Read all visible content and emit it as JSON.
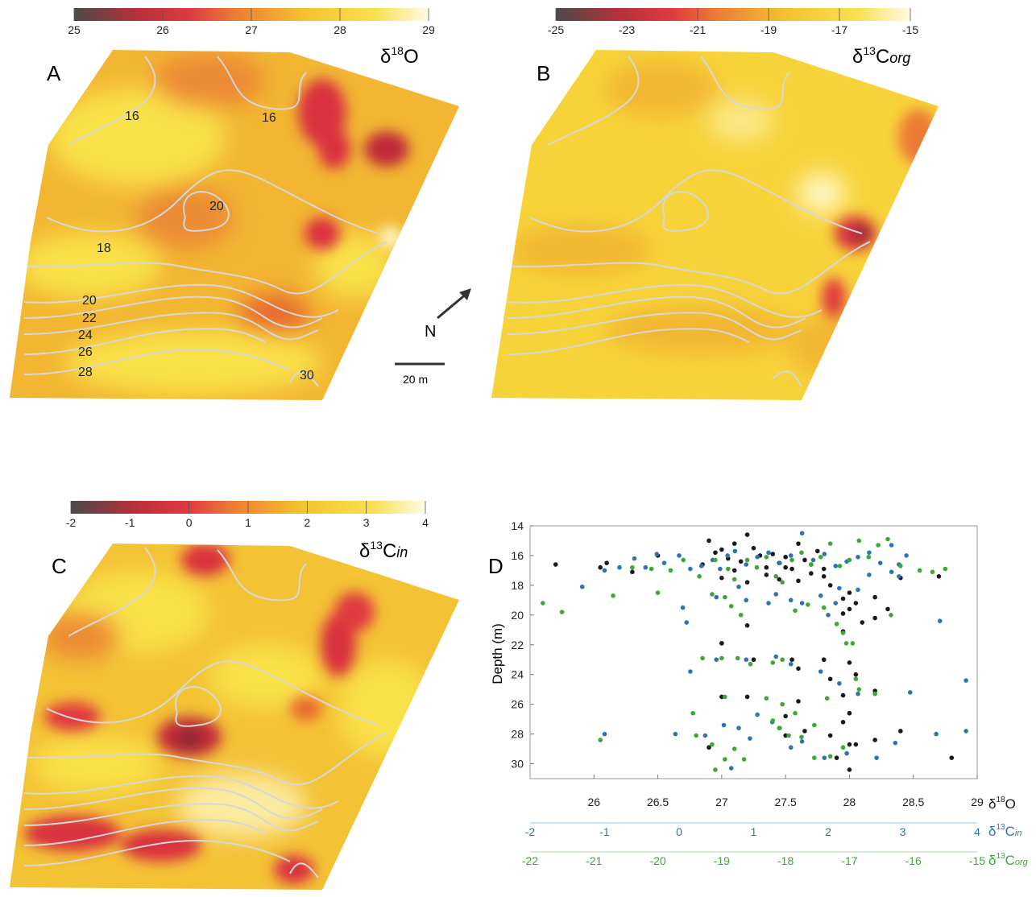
{
  "colors": {
    "ramp": [
      "#4a4a4a",
      "#d9303f",
      "#e35a3a",
      "#f0a030",
      "#f6d02c",
      "#fff3b0",
      "#ffffff"
    ],
    "contour": "#d7d7d7",
    "black_series": "#1a1a1a",
    "blue_series": "#2e74b5",
    "green_series": "#3aaa35"
  },
  "panels": {
    "A": {
      "letter": "A",
      "label_main": "δ",
      "label_sup": "18",
      "label_end": "O",
      "colorbar_ticks": [
        "25",
        "26",
        "27",
        "28",
        "29"
      ],
      "contour_labels": [
        "16",
        "16",
        "20",
        "18",
        "20",
        "22",
        "24",
        "26",
        "28",
        "30"
      ]
    },
    "B": {
      "letter": "B",
      "label_main": "δ",
      "label_sup": "13",
      "label_end": "C",
      "label_sub": "org",
      "colorbar_ticks": [
        "-25",
        "-23",
        "-21",
        "-19",
        "-17",
        "-15"
      ]
    },
    "C": {
      "letter": "C",
      "label_main": "δ",
      "label_sup": "13",
      "label_end": "C",
      "label_sub": "in",
      "colorbar_ticks": [
        "-2",
        "-1",
        "0",
        "1",
        "2",
        "3",
        "4"
      ]
    },
    "D": {
      "letter": "D"
    }
  },
  "compass": {
    "north_label": "N",
    "scale_label": "20 m"
  },
  "chart_data": {
    "type": "scatter",
    "ylabel": "Depth (m)",
    "ylim": [
      31,
      14
    ],
    "yticks": [
      14,
      16,
      18,
      20,
      22,
      24,
      26,
      28,
      30
    ],
    "axes": [
      {
        "label_main": "δ",
        "label_sup": "18",
        "label_end": "O",
        "label_sub": "",
        "range": [
          25.5,
          29
        ],
        "ticks": [
          "26",
          "26.5",
          "27",
          "27.5",
          "28",
          "28.5",
          "29"
        ],
        "color": "#1a1a1a"
      },
      {
        "label_main": "δ",
        "label_sup": "13",
        "label_end": "C",
        "label_sub": "in",
        "range": [
          -2,
          4
        ],
        "ticks": [
          "-2",
          "-1",
          "0",
          "1",
          "2",
          "3",
          "4"
        ],
        "color": "#2e74b5"
      },
      {
        "label_main": "δ",
        "label_sup": "13",
        "label_end": "C",
        "label_sub": "org",
        "range": [
          -22,
          -15
        ],
        "ticks": [
          "-22",
          "-21",
          "-20",
          "-19",
          "-18",
          "-17",
          "-16",
          "-15"
        ],
        "color": "#3aaa35"
      }
    ],
    "series": [
      {
        "axis": 0,
        "points": [
          [
            25.7,
            16.6
          ],
          [
            26.05,
            16.8
          ],
          [
            26.1,
            16.5
          ],
          [
            26.3,
            17.1
          ],
          [
            26.5,
            16.0
          ],
          [
            26.85,
            16.6
          ],
          [
            26.9,
            15.0
          ],
          [
            26.95,
            15.8
          ],
          [
            27.0,
            15.6
          ],
          [
            27.05,
            16.2
          ],
          [
            27.1,
            15.2
          ],
          [
            27.15,
            16.4
          ],
          [
            27.2,
            14.6
          ],
          [
            27.25,
            15.5
          ],
          [
            27.3,
            16.0
          ],
          [
            27.35,
            16.8
          ],
          [
            27.4,
            15.9
          ],
          [
            27.45,
            16.5
          ],
          [
            27.5,
            16.1
          ],
          [
            27.55,
            16.9
          ],
          [
            27.6,
            15.2
          ],
          [
            27.65,
            16.3
          ],
          [
            27.7,
            16.6
          ],
          [
            27.75,
            15.7
          ],
          [
            27.8,
            16.9
          ],
          [
            27.0,
            17.5
          ],
          [
            27.1,
            17.0
          ],
          [
            27.2,
            17.8
          ],
          [
            27.35,
            17.3
          ],
          [
            27.45,
            17.6
          ],
          [
            27.5,
            16.8
          ],
          [
            27.6,
            17.7
          ],
          [
            27.7,
            17.2
          ],
          [
            27.8,
            17.4
          ],
          [
            27.85,
            18.0
          ],
          [
            27.95,
            18.9
          ],
          [
            28.0,
            18.5
          ],
          [
            28.05,
            19.2
          ],
          [
            27.95,
            19.9
          ],
          [
            28.0,
            19.6
          ],
          [
            28.1,
            20.5
          ],
          [
            27.95,
            21.1
          ],
          [
            28.2,
            18.8
          ],
          [
            28.2,
            20.2
          ],
          [
            28.3,
            19.6
          ],
          [
            28.4,
            17.5
          ],
          [
            28.7,
            17.4
          ],
          [
            27.2,
            20.7
          ],
          [
            27.0,
            21.9
          ],
          [
            27.25,
            23.0
          ],
          [
            27.55,
            23.0
          ],
          [
            27.6,
            23.6
          ],
          [
            27.8,
            23.0
          ],
          [
            27.85,
            24.3
          ],
          [
            28.0,
            23.2
          ],
          [
            28.05,
            24.0
          ],
          [
            27.95,
            25.4
          ],
          [
            27.0,
            25.5
          ],
          [
            27.2,
            25.5
          ],
          [
            27.5,
            26.8
          ],
          [
            27.6,
            25.8
          ],
          [
            28.0,
            26.6
          ],
          [
            28.2,
            25.1
          ],
          [
            27.95,
            27.2
          ],
          [
            27.5,
            28.1
          ],
          [
            27.65,
            27.8
          ],
          [
            27.85,
            28.1
          ],
          [
            28.0,
            28.7
          ],
          [
            28.05,
            28.7
          ],
          [
            28.2,
            28.4
          ],
          [
            28.4,
            27.8
          ],
          [
            26.9,
            28.9
          ],
          [
            27.9,
            29.6
          ],
          [
            28.0,
            30.4
          ],
          [
            28.8,
            29.6
          ],
          [
            27.0,
            21.9
          ]
        ]
      },
      {
        "axis": 1,
        "points": [
          [
            -1.3,
            18.1
          ],
          [
            -1.0,
            17.0
          ],
          [
            -0.8,
            16.8
          ],
          [
            -0.6,
            16.2
          ],
          [
            -0.45,
            16.8
          ],
          [
            -0.3,
            15.9
          ],
          [
            -0.2,
            16.5
          ],
          [
            0.0,
            16.0
          ],
          [
            0.15,
            16.9
          ],
          [
            0.3,
            16.7
          ],
          [
            0.45,
            16.3
          ],
          [
            0.55,
            16.9
          ],
          [
            0.65,
            16.0
          ],
          [
            0.75,
            15.7
          ],
          [
            0.9,
            16.6
          ],
          [
            1.05,
            16.1
          ],
          [
            1.2,
            15.8
          ],
          [
            1.35,
            16.5
          ],
          [
            1.5,
            16.0
          ],
          [
            1.65,
            14.5
          ],
          [
            1.8,
            16.3
          ],
          [
            1.95,
            15.9
          ],
          [
            2.1,
            16.7
          ],
          [
            2.25,
            16.4
          ],
          [
            2.4,
            16.1
          ],
          [
            2.55,
            15.8
          ],
          [
            2.7,
            16.5
          ],
          [
            2.85,
            15.3
          ],
          [
            2.95,
            16.6
          ],
          [
            3.05,
            16.0
          ],
          [
            0.05,
            19.5
          ],
          [
            0.1,
            20.5
          ],
          [
            0.5,
            18.8
          ],
          [
            0.8,
            18.1
          ],
          [
            0.9,
            19.0
          ],
          [
            1.2,
            19.2
          ],
          [
            1.3,
            18.6
          ],
          [
            1.5,
            19.0
          ],
          [
            1.65,
            19.2
          ],
          [
            1.9,
            18.7
          ],
          [
            2.0,
            20.0
          ],
          [
            2.1,
            19.2
          ],
          [
            2.15,
            18.2
          ],
          [
            2.4,
            18.3
          ],
          [
            2.55,
            17.3
          ],
          [
            2.85,
            17.1
          ],
          [
            2.95,
            17.4
          ],
          [
            3.5,
            20.4
          ],
          [
            0.15,
            23.8
          ],
          [
            0.5,
            23.0
          ],
          [
            0.9,
            23.0
          ],
          [
            1.3,
            22.8
          ],
          [
            1.5,
            23.3
          ],
          [
            1.9,
            23.8
          ],
          [
            2.15,
            24.6
          ],
          [
            2.4,
            25.3
          ],
          [
            3.1,
            25.2
          ],
          [
            3.85,
            24.4
          ],
          [
            -0.05,
            28.0
          ],
          [
            0.35,
            28.1
          ],
          [
            0.6,
            27.4
          ],
          [
            0.8,
            27.6
          ],
          [
            1.05,
            26.7
          ],
          [
            1.25,
            27.2
          ],
          [
            1.35,
            27.6
          ],
          [
            1.5,
            28.9
          ],
          [
            1.65,
            28.5
          ],
          [
            1.95,
            29.6
          ],
          [
            2.25,
            29.3
          ],
          [
            2.65,
            29.6
          ],
          [
            2.9,
            28.6
          ],
          [
            3.45,
            28.0
          ],
          [
            3.85,
            27.8
          ],
          [
            -1.0,
            28.0
          ],
          [
            0.95,
            28.3
          ],
          [
            0.7,
            30.3
          ]
        ]
      },
      {
        "axis": 2,
        "points": [
          [
            -21.8,
            19.2
          ],
          [
            -20.9,
            28.4
          ],
          [
            -20.7,
            18.7
          ],
          [
            -20.4,
            16.8
          ],
          [
            -20.1,
            16.9
          ],
          [
            -19.8,
            17.0
          ],
          [
            -19.6,
            16.3
          ],
          [
            -19.35,
            17.4
          ],
          [
            -19.1,
            16.3
          ],
          [
            -18.9,
            16.9
          ],
          [
            -18.8,
            17.6
          ],
          [
            -18.6,
            16.3
          ],
          [
            -18.45,
            16.8
          ],
          [
            -18.3,
            16.1
          ],
          [
            -18.15,
            17.4
          ],
          [
            -18.05,
            17.8
          ],
          [
            -17.9,
            16.3
          ],
          [
            -17.75,
            15.8
          ],
          [
            -17.6,
            16.6
          ],
          [
            -17.45,
            16.1
          ],
          [
            -17.3,
            15.2
          ],
          [
            -17.15,
            16.7
          ],
          [
            -17.0,
            16.3
          ],
          [
            -16.85,
            15.0
          ],
          [
            -16.7,
            16.1
          ],
          [
            -16.55,
            15.3
          ],
          [
            -16.4,
            14.9
          ],
          [
            -16.2,
            16.7
          ],
          [
            -15.9,
            17.0
          ],
          [
            -15.7,
            17.1
          ],
          [
            -15.5,
            16.9
          ],
          [
            -20.0,
            18.5
          ],
          [
            -19.15,
            18.6
          ],
          [
            -19.3,
            22.9
          ],
          [
            -19.0,
            22.9
          ],
          [
            -18.75,
            22.9
          ],
          [
            -18.55,
            23.3
          ],
          [
            -18.2,
            23.2
          ],
          [
            -18.05,
            23.0
          ],
          [
            -17.85,
            19.7
          ],
          [
            -17.65,
            19.3
          ],
          [
            -17.4,
            19.5
          ],
          [
            -17.2,
            20.6
          ],
          [
            -17.1,
            21.2
          ],
          [
            -17.05,
            21.9
          ],
          [
            -16.95,
            21.9
          ],
          [
            -16.9,
            24.3
          ],
          [
            -16.85,
            25.0
          ],
          [
            -16.6,
            25.3
          ],
          [
            -16.35,
            20.0
          ],
          [
            -18.95,
            18.8
          ],
          [
            -18.85,
            19.4
          ],
          [
            -18.7,
            20.0
          ],
          [
            -18.95,
            25.5
          ],
          [
            -18.3,
            25.6
          ],
          [
            -18.05,
            26.0
          ],
          [
            -17.85,
            26.6
          ],
          [
            -17.55,
            27.4
          ],
          [
            -17.35,
            25.6
          ],
          [
            -19.45,
            26.6
          ],
          [
            -19.4,
            28.1
          ],
          [
            -19.15,
            28.7
          ],
          [
            -18.95,
            29.7
          ],
          [
            -18.8,
            29.0
          ],
          [
            -18.65,
            29.7
          ],
          [
            -19.1,
            30.4
          ],
          [
            -18.2,
            27.1
          ],
          [
            -18.1,
            27.6
          ],
          [
            -17.95,
            28.1
          ],
          [
            -17.75,
            28.2
          ],
          [
            -17.55,
            29.6
          ],
          [
            -17.3,
            29.5
          ],
          [
            -17.1,
            28.9
          ],
          [
            -21.5,
            19.8
          ]
        ]
      }
    ]
  }
}
